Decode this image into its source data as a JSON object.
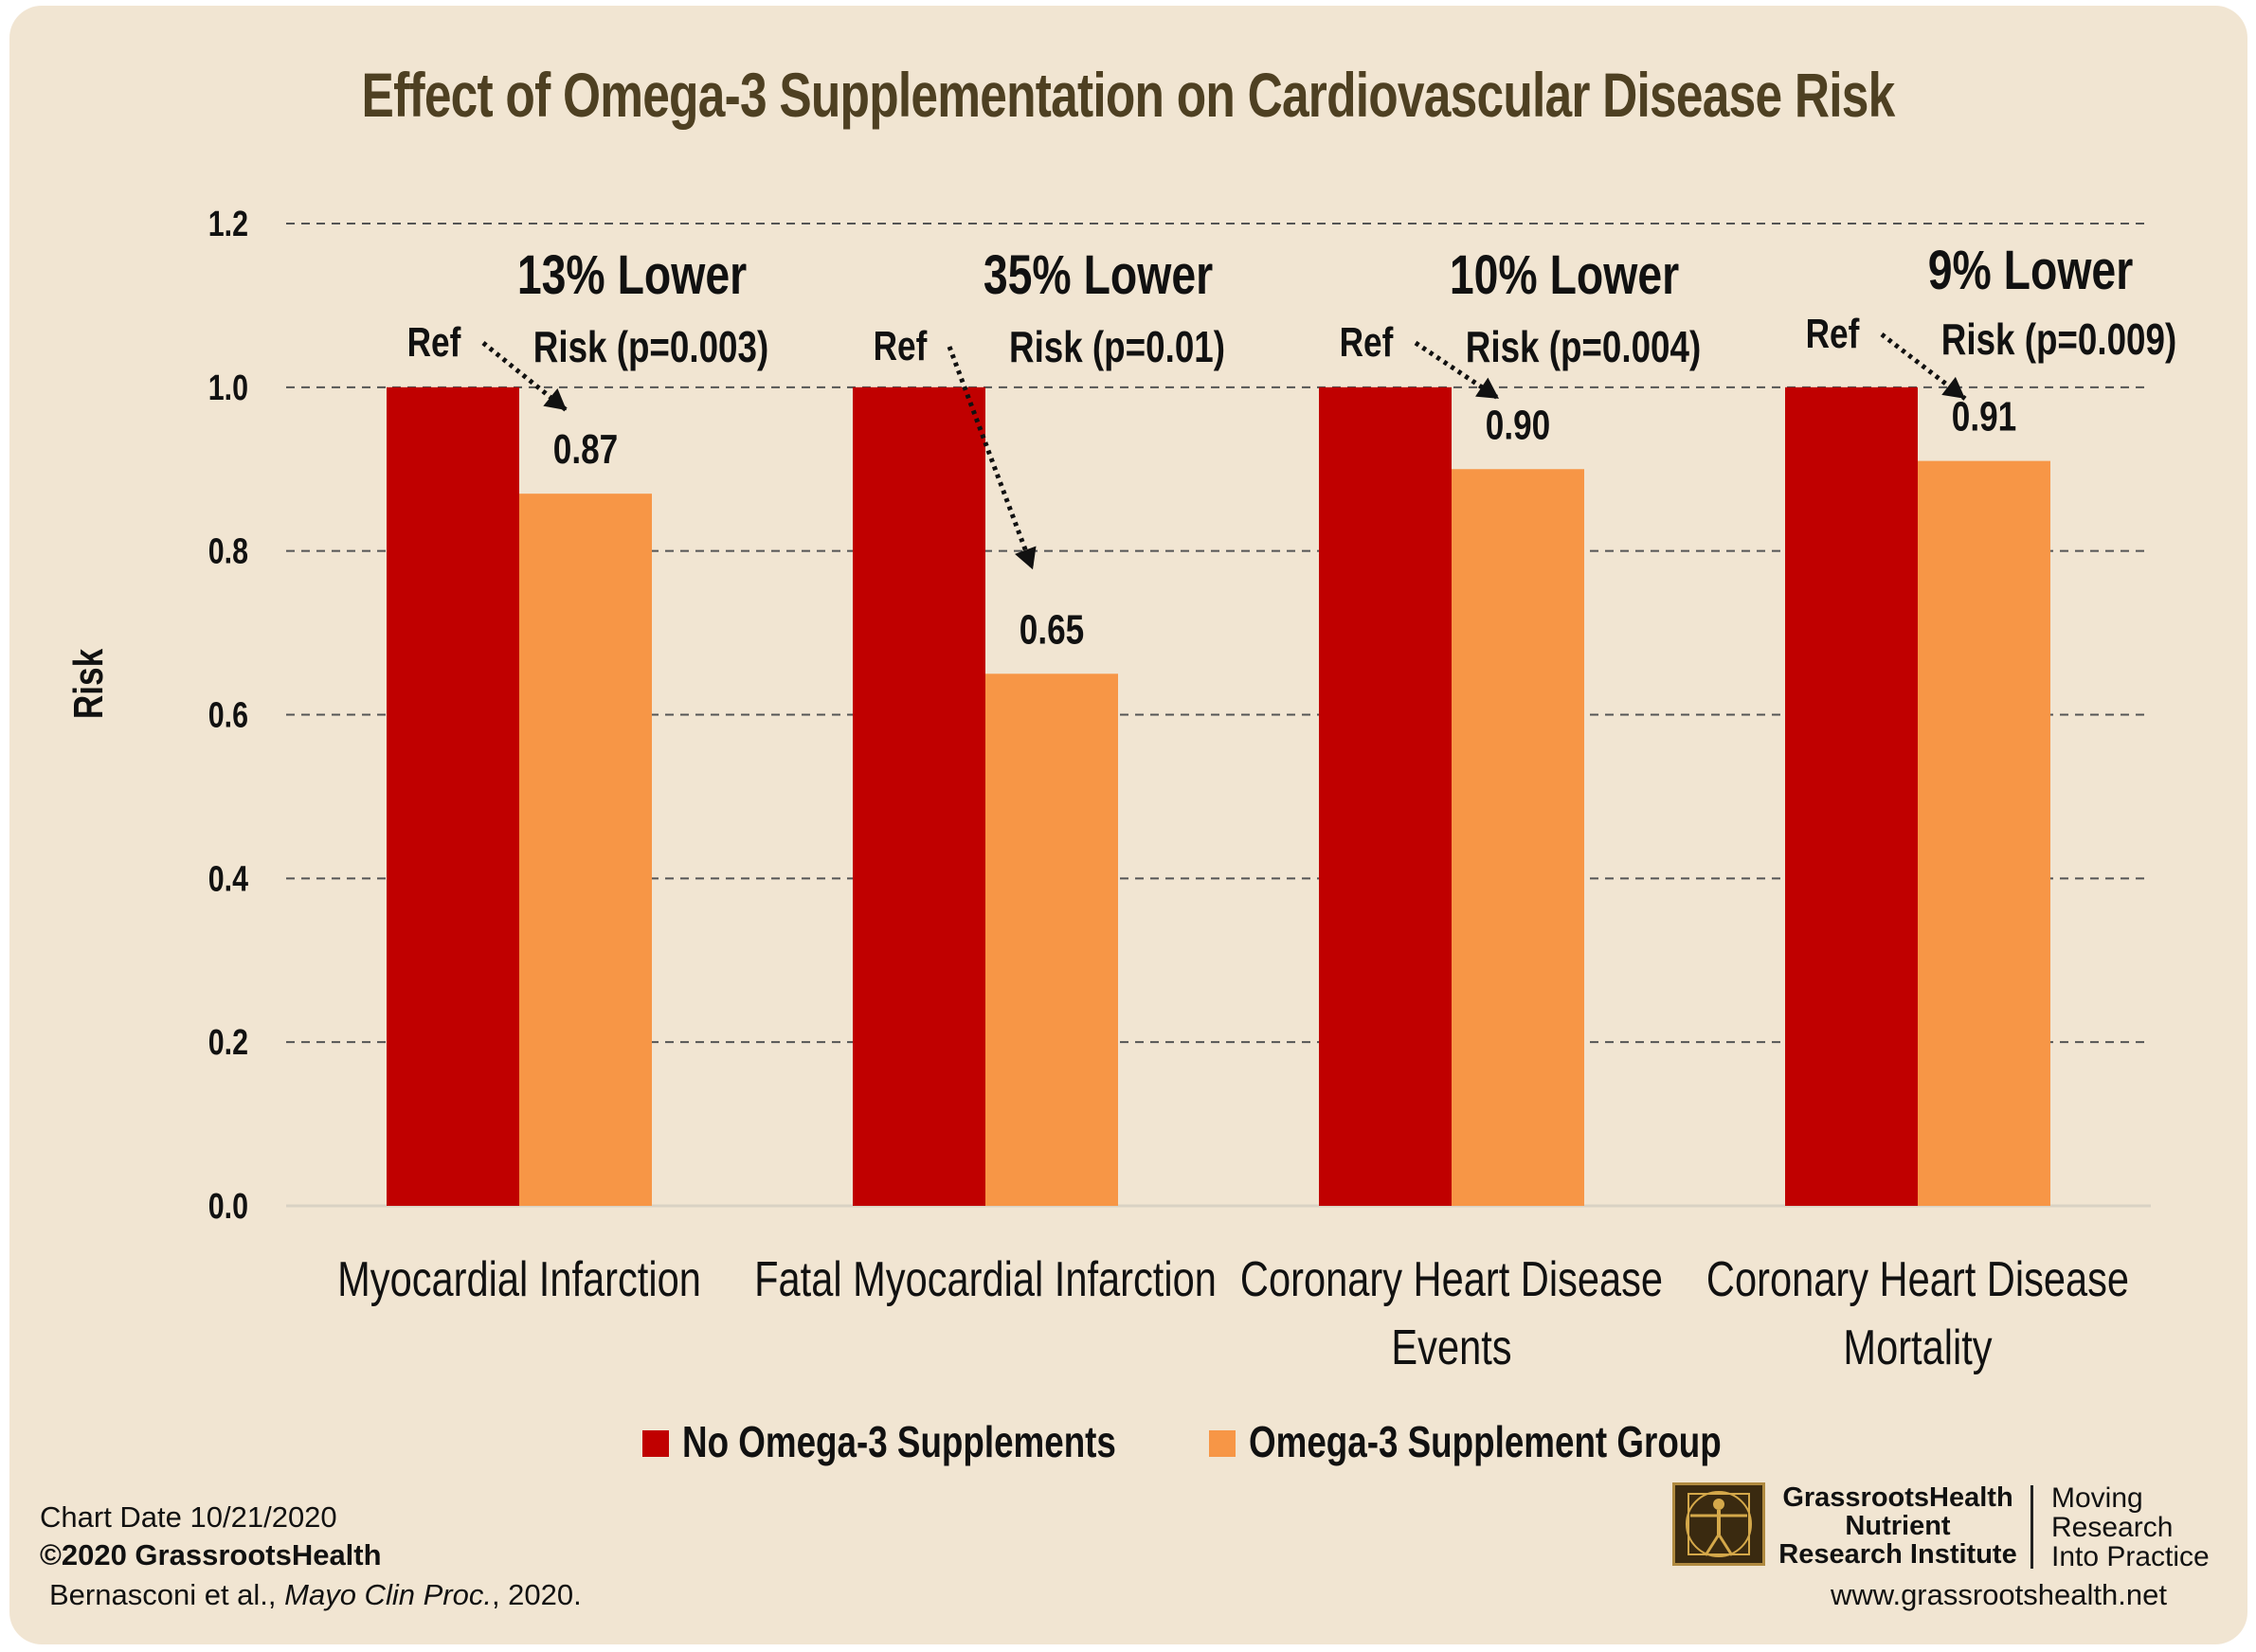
{
  "chart_data": {
    "type": "bar",
    "title": "Effect of Omega-3 Supplementation on Cardiovascular Disease Risk",
    "ylabel": "Risk",
    "ylim": [
      0,
      1.2
    ],
    "yticks": [
      "0.0",
      "0.2",
      "0.4",
      "0.6",
      "0.8",
      "1.0",
      "1.2"
    ],
    "grid": true,
    "legend_position": "bottom",
    "categories": [
      [
        "Myocardial Infarction"
      ],
      [
        "Fatal Myocardial Infarction"
      ],
      [
        "Coronary Heart Disease",
        "Events"
      ],
      [
        "Coronary Heart Disease",
        "Mortality"
      ]
    ],
    "series": [
      {
        "name": "No Omega-3 Supplements",
        "color": "#c00000",
        "values": [
          1.0,
          1.0,
          1.0,
          1.0
        ]
      },
      {
        "name": "Omega-3 Supplement Group",
        "color": "#f79646",
        "values": [
          0.87,
          0.65,
          0.9,
          0.91
        ]
      }
    ],
    "annotations": [
      {
        "ref": "Ref",
        "value_label": "0.87",
        "line1": "13% Lower",
        "line2": "Risk (p=0.003)"
      },
      {
        "ref": "Ref",
        "value_label": "0.65",
        "line1": "35% Lower",
        "line2": "Risk (p=0.01)"
      },
      {
        "ref": "Ref",
        "value_label": "0.90",
        "line1": "10% Lower",
        "line2": "Risk (p=0.004)"
      },
      {
        "ref": "Ref",
        "value_label": "0.91",
        "line1": "9% Lower",
        "line2": "Risk (p=0.009)"
      }
    ]
  },
  "footer": {
    "chart_date": "Chart Date 10/21/2020",
    "copyright": "©2020 GrassrootsHealth",
    "citation_authors": "Bernasconi et al., ",
    "citation_journal": "Mayo Clin Proc.",
    "citation_year": ", 2020."
  },
  "branding": {
    "org_line1": "GrassrootsHealth",
    "org_line2": "Nutrient",
    "org_line3": "Research Institute",
    "tagline1": "Moving",
    "tagline2": "Research",
    "tagline3": "Into Practice",
    "website": "www.grassrootshealth.net",
    "logo_icon": "vitruvian-man-icon"
  }
}
